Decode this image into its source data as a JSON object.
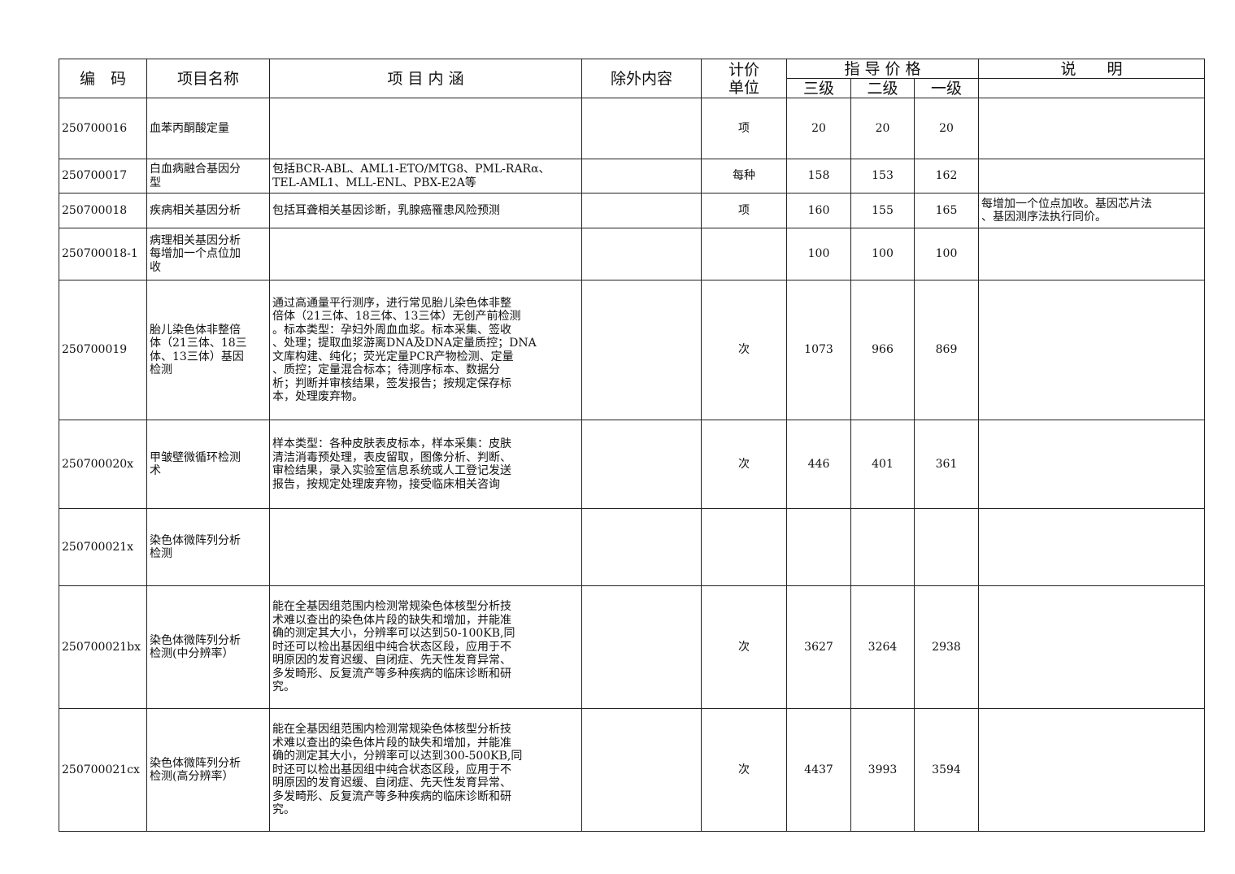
{
  "header": {
    "code": "编　码",
    "name": "项目名称",
    "content": "项 目 内 涵",
    "exclusions": "除外内容",
    "unit": "计价\n单位",
    "price": "指 导 价 格",
    "level3": "三级",
    "level2": "二级",
    "level1": "一级",
    "notes": "说　　明"
  },
  "rows": [
    {
      "code": "250700016",
      "name": "血苯丙酮酸定量",
      "content": "",
      "exclusions": "",
      "unit": "项",
      "level3": "20",
      "level2": "20",
      "level1": "20",
      "notes": ""
    },
    {
      "code": "250700017",
      "name": "白血病融合基因分\n型",
      "content": "包括BCR-ABL、AML1-ETO/MTG8、PML-RARα、\nTEL-AML1、MLL-ENL、PBX-E2A等",
      "exclusions": "",
      "unit": "每种",
      "level3": "158",
      "level2": "153",
      "level1": "162",
      "notes": ""
    },
    {
      "code": "250700018",
      "name": "疾病相关基因分析",
      "content": "包括耳聋相关基因诊断，乳腺癌罹患风险预测",
      "exclusions": "",
      "unit": "项",
      "level3": "160",
      "level2": "155",
      "level1": "165",
      "notes": "每增加一个位点加收。基因芯片法\n、基因测序法执行同价。"
    },
    {
      "code": "250700018-1",
      "name": "病理相关基因分析\n每增加一个点位加\n收",
      "content": "",
      "exclusions": "",
      "unit": "",
      "level3": "100",
      "level2": "100",
      "level1": "100",
      "notes": ""
    },
    {
      "code": "250700019",
      "name": "胎儿染色体非整倍\n体（21三体、18三\n体、13三体）基因\n检测",
      "content": "通过高通量平行测序，进行常见胎儿染色体非整\n倍体（21三体、18三体、13三体）无创产前检测\n。标本类型：孕妇外周血血浆。标本采集、签收\n、处理；提取血浆游离DNA及DNA定量质控；DNA\n文库构建、纯化；荧光定量PCR产物检测、定量\n、质控；定量混合标本；待测序标本、数据分\n析；判断并审核结果，签发报告；按规定保存标\n本，处理废弃物。",
      "exclusions": "",
      "unit": "次",
      "level3": "1073",
      "level2": "966",
      "level1": "869",
      "notes": ""
    },
    {
      "code": "250700020x",
      "name": "甲皱壁微循环检测\n术",
      "content": "样本类型：各种皮肤表皮标本，样本采集：皮肤\n清洁消毒预处理，表皮留取，图像分析、判断、\n审检结果，录入实验室信息系统或人工登记发送\n报告，按规定处理废弃物，接受临床相关咨询",
      "exclusions": "",
      "unit": "次",
      "level3": "446",
      "level2": "401",
      "level1": "361",
      "notes": ""
    },
    {
      "code": "250700021x",
      "name": "染色体微阵列分析\n检测",
      "content": "",
      "exclusions": "",
      "unit": "",
      "level3": "",
      "level2": "",
      "level1": "",
      "notes": ""
    },
    {
      "code": "250700021bx",
      "name": "染色体微阵列分析\n检测(中分辨率）",
      "content": "能在全基因组范围内检测常规染色体核型分析技\n术难以查出的染色体片段的缺失和增加，并能准\n确的测定其大小，分辨率可以达到50-100KB,同\n时还可以检出基因组中纯合状态区段，应用于不\n明原因的发育迟缓、自闭症、先天性发育异常、\n多发畸形、反复流产等多种疾病的临床诊断和研\n究。",
      "exclusions": "",
      "unit": "次",
      "level3": "3627",
      "level2": "3264",
      "level1": "2938",
      "notes": ""
    },
    {
      "code": "250700021cx",
      "name": "染色体微阵列分析\n检测(高分辨率）",
      "content": "能在全基因组范围内检测常规染色体核型分析技\n术难以查出的染色体片段的缺失和增加，并能准\n确的测定其大小，分辨率可以达到300-500KB,同\n时还可以检出基因组中纯合状态区段，应用于不\n明原因的发育迟缓、自闭症、先天性发育异常、\n多发畸形、反复流产等多种疾病的临床诊断和研\n究。",
      "exclusions": "",
      "unit": "次",
      "level3": "4437",
      "level2": "3993",
      "level1": "3594",
      "notes": ""
    }
  ]
}
